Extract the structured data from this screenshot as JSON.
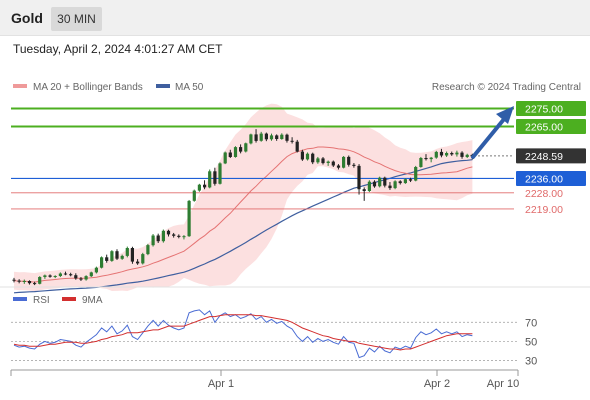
{
  "header": {
    "instrument": "Gold",
    "interval": "30 MIN",
    "datetime": "Tuesday, April 2, 2024 4:01:27 AM CET"
  },
  "legend": {
    "ma20": "MA 20 + Bollinger Bands",
    "ma50": "MA 50",
    "credit": "Research © 2024 Trading Central",
    "rsi": "RSI",
    "ma9": "9MA"
  },
  "colors": {
    "bullish": "#2e7d32",
    "bearish": "#222222",
    "ma20": "#e57373",
    "ma50": "#3f5f9f",
    "bollinger_fill": "#fbd5d5",
    "resistance": "#4caf20",
    "support": "#1e5fd6",
    "minor_level": "#e06a6a",
    "current": "#333333",
    "arrow": "#2f5da8",
    "rsi": "#4a6cd4",
    "rsi_ma": "#d32f2f"
  },
  "levels": [
    {
      "value": "2275.00",
      "kind": "resistance"
    },
    {
      "value": "2265.00",
      "kind": "resistance"
    },
    {
      "value": "2248.59",
      "kind": "current"
    },
    {
      "value": "2236.00",
      "kind": "support"
    },
    {
      "value": "2228.00",
      "kind": "minor"
    },
    {
      "value": "2219.00",
      "kind": "minor"
    }
  ],
  "rsi_axis": [
    "70",
    "50",
    "30"
  ],
  "time_axis": [
    "Apr 1",
    "Apr 2",
    "Apr 10"
  ],
  "chart_data": {
    "type": "line",
    "price_range": [
      2176,
      2282
    ],
    "rsi_range": [
      20,
      85
    ],
    "candles": [
      [
        2179.5,
        2180.5,
        2178.0,
        2179.0
      ],
      [
        2179.0,
        2179.8,
        2177.5,
        2178.4
      ],
      [
        2178.4,
        2179.6,
        2177.2,
        2178.8
      ],
      [
        2178.8,
        2179.2,
        2176.8,
        2177.6
      ],
      [
        2177.6,
        2178.4,
        2176.5,
        2177.2
      ],
      [
        2177.2,
        2181.5,
        2176.9,
        2181.0
      ],
      [
        2181.0,
        2182.4,
        2180.0,
        2181.9
      ],
      [
        2181.9,
        2182.5,
        2180.6,
        2181.1
      ],
      [
        2181.1,
        2182.0,
        2180.4,
        2181.6
      ],
      [
        2181.6,
        2183.6,
        2181.0,
        2183.0
      ],
      [
        2183.0,
        2184.0,
        2182.0,
        2182.6
      ],
      [
        2182.6,
        2183.4,
        2181.4,
        2182.0
      ],
      [
        2182.0,
        2183.1,
        2179.5,
        2180.2
      ],
      [
        2180.2,
        2181.0,
        2178.8,
        2179.6
      ],
      [
        2179.6,
        2182.0,
        2179.0,
        2181.5
      ],
      [
        2181.5,
        2184.0,
        2181.0,
        2183.6
      ],
      [
        2183.6,
        2186.8,
        2183.0,
        2186.2
      ],
      [
        2186.2,
        2192.5,
        2185.8,
        2192.0
      ],
      [
        2192.0,
        2193.5,
        2189.0,
        2190.0
      ],
      [
        2190.0,
        2196.0,
        2189.5,
        2195.4
      ],
      [
        2195.4,
        2196.5,
        2190.5,
        2191.2
      ],
      [
        2191.2,
        2193.5,
        2190.6,
        2192.8
      ],
      [
        2192.8,
        2198.0,
        2192.0,
        2197.2
      ],
      [
        2197.2,
        2197.9,
        2188.4,
        2189.6
      ],
      [
        2189.6,
        2191.0,
        2187.8,
        2188.6
      ],
      [
        2188.6,
        2194.5,
        2188.0,
        2193.8
      ],
      [
        2193.8,
        2199.5,
        2193.2,
        2198.8
      ],
      [
        2198.8,
        2205.0,
        2198.0,
        2204.2
      ],
      [
        2204.2,
        2205.2,
        2200.0,
        2201.0
      ],
      [
        2201.0,
        2207.5,
        2200.2,
        2206.8
      ],
      [
        2206.8,
        2207.4,
        2203.6,
        2204.8
      ],
      [
        2204.8,
        2205.6,
        2203.0,
        2204.0
      ],
      [
        2204.0,
        2204.8,
        2202.6,
        2203.4
      ],
      [
        2203.4,
        2204.4,
        2202.0,
        2203.8
      ],
      [
        2203.8,
        2224.0,
        2203.4,
        2223.5
      ],
      [
        2223.5,
        2229.8,
        2223.0,
        2229.2
      ],
      [
        2229.2,
        2233.0,
        2228.6,
        2232.5
      ],
      [
        2232.5,
        2235.0,
        2230.0,
        2231.0
      ],
      [
        2231.0,
        2241.0,
        2230.5,
        2240.0
      ],
      [
        2240.0,
        2242.0,
        2232.0,
        2233.0
      ],
      [
        2233.0,
        2245.0,
        2232.6,
        2244.4
      ],
      [
        2244.4,
        2251.0,
        2244.0,
        2250.5
      ],
      [
        2250.5,
        2252.0,
        2247.4,
        2248.0
      ],
      [
        2248.0,
        2254.0,
        2247.6,
        2253.5
      ],
      [
        2253.5,
        2255.0,
        2250.0,
        2251.0
      ],
      [
        2251.0,
        2256.0,
        2250.5,
        2255.6
      ],
      [
        2255.6,
        2261.0,
        2255.0,
        2260.6
      ],
      [
        2260.6,
        2263.5,
        2256.0,
        2257.0
      ],
      [
        2257.0,
        2262.0,
        2256.5,
        2261.0
      ],
      [
        2261.0,
        2261.6,
        2256.8,
        2257.8
      ],
      [
        2257.8,
        2261.0,
        2257.0,
        2260.0
      ],
      [
        2260.0,
        2260.6,
        2257.0,
        2258.0
      ],
      [
        2258.0,
        2261.2,
        2257.6,
        2260.4
      ],
      [
        2260.4,
        2261.0,
        2256.0,
        2257.0
      ],
      [
        2257.0,
        2259.0,
        2255.5,
        2256.5
      ],
      [
        2256.5,
        2257.5,
        2250.5,
        2251.0
      ],
      [
        2251.0,
        2252.0,
        2245.8,
        2246.6
      ],
      [
        2246.6,
        2250.5,
        2246.0,
        2249.8
      ],
      [
        2249.8,
        2250.4,
        2244.0,
        2245.0
      ],
      [
        2245.0,
        2248.0,
        2244.2,
        2247.2
      ],
      [
        2247.2,
        2248.0,
        2243.8,
        2244.6
      ],
      [
        2244.6,
        2246.0,
        2243.0,
        2245.4
      ],
      [
        2245.4,
        2246.0,
        2242.4,
        2243.2
      ],
      [
        2243.2,
        2244.0,
        2241.0,
        2242.0
      ],
      [
        2242.0,
        2248.5,
        2241.6,
        2248.0
      ],
      [
        2248.0,
        2248.8,
        2242.6,
        2243.6
      ],
      [
        2243.6,
        2244.6,
        2242.0,
        2243.0
      ],
      [
        2243.0,
        2244.0,
        2227.0,
        2230.0
      ],
      [
        2230.0,
        2231.0,
        2223.5,
        2229.0
      ],
      [
        2229.0,
        2235.0,
        2228.4,
        2234.2
      ],
      [
        2234.2,
        2235.0,
        2230.8,
        2231.6
      ],
      [
        2231.6,
        2237.0,
        2231.0,
        2236.4
      ],
      [
        2236.4,
        2237.0,
        2231.0,
        2232.0
      ],
      [
        2232.0,
        2234.0,
        2229.6,
        2230.6
      ],
      [
        2230.6,
        2235.0,
        2230.0,
        2234.4
      ],
      [
        2234.4,
        2235.0,
        2232.6,
        2233.4
      ],
      [
        2233.4,
        2236.0,
        2233.0,
        2235.6
      ],
      [
        2235.6,
        2236.4,
        2234.0,
        2234.8
      ],
      [
        2234.8,
        2243.0,
        2234.4,
        2242.4
      ],
      [
        2242.4,
        2248.0,
        2242.0,
        2247.4
      ],
      [
        2247.4,
        2249.6,
        2246.0,
        2246.8
      ],
      [
        2246.8,
        2248.0,
        2245.0,
        2247.6
      ],
      [
        2247.6,
        2251.4,
        2247.0,
        2250.8
      ],
      [
        2250.8,
        2252.5,
        2247.8,
        2248.8
      ],
      [
        2248.8,
        2251.0,
        2248.0,
        2250.2
      ],
      [
        2250.2,
        2251.0,
        2248.6,
        2249.4
      ],
      [
        2249.4,
        2251.5,
        2248.2,
        2250.4
      ],
      [
        2250.4,
        2251.2,
        2247.0,
        2248.0
      ],
      [
        2248.0,
        2249.8,
        2247.4,
        2249.2
      ],
      [
        2249.2,
        2249.8,
        2246.6,
        2248.6
      ]
    ],
    "rsi": [
      46,
      44,
      45,
      43,
      42,
      47,
      50,
      48,
      49,
      52,
      51,
      50,
      46,
      44,
      49,
      53,
      57,
      64,
      60,
      66,
      58,
      61,
      67,
      55,
      52,
      59,
      66,
      72,
      66,
      72,
      67,
      64,
      62,
      64,
      80,
      82,
      83,
      78,
      82,
      70,
      77,
      80,
      76,
      78,
      74,
      76,
      79,
      73,
      76,
      70,
      73,
      69,
      71,
      66,
      63,
      55,
      50,
      55,
      49,
      53,
      50,
      52,
      49,
      47,
      55,
      49,
      48,
      33,
      35,
      43,
      39,
      45,
      40,
      38,
      44,
      42,
      45,
      43,
      54,
      60,
      57,
      59,
      63,
      58,
      60,
      58,
      60,
      55,
      57,
      56
    ],
    "rsi_ma": [
      47,
      46,
      46,
      45,
      45,
      45,
      46,
      47,
      47,
      48,
      49,
      49,
      49,
      48,
      48,
      49,
      50,
      52,
      53,
      55,
      56,
      57,
      59,
      59,
      59,
      60,
      61,
      62,
      62,
      64,
      66,
      66,
      66,
      66,
      68,
      70,
      72,
      74,
      76,
      76,
      77,
      78,
      78,
      78,
      78,
      78,
      78,
      77,
      77,
      76,
      75,
      74,
      73,
      72,
      70,
      67,
      64,
      62,
      60,
      58,
      56,
      55,
      53,
      52,
      51,
      50,
      50,
      48,
      47,
      46,
      45,
      44,
      43,
      42,
      42,
      41,
      42,
      42,
      44,
      46,
      48,
      50,
      52,
      54,
      56,
      57,
      58,
      58,
      58,
      58
    ]
  }
}
